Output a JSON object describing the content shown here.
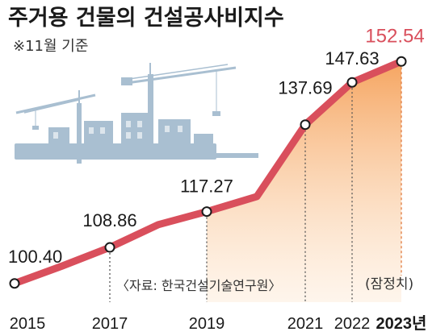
{
  "header": {
    "title": "주거용 건물의 건설공사비지수",
    "note": "※11월 기준"
  },
  "source": "〈자료: 한국건설기술연구원〉",
  "preliminary": "(잠정치)",
  "colors": {
    "line": "#d94f5c",
    "area_top": "#f5a058",
    "highlight": "#d94f5c",
    "illustration": "#a9bfd1"
  },
  "chart_data": {
    "type": "line",
    "title": "주거용 건물의 건설공사비지수",
    "xlabel": "",
    "ylabel": "",
    "points": [
      {
        "x": 2015,
        "y": 100.4,
        "label": "100.40",
        "marked": true
      },
      {
        "x": 2016,
        "y": 104.5,
        "label": "",
        "marked": false
      },
      {
        "x": 2017,
        "y": 108.86,
        "label": "108.86",
        "marked": true
      },
      {
        "x": 2018,
        "y": 114.2,
        "label": "",
        "marked": false
      },
      {
        "x": 2019,
        "y": 117.27,
        "label": "117.27",
        "marked": true
      },
      {
        "x": 2020,
        "y": 120.8,
        "label": "",
        "marked": false
      },
      {
        "x": 2021,
        "y": 137.69,
        "label": "137.69",
        "marked": true
      },
      {
        "x": 2022,
        "y": 147.63,
        "label": "147.63",
        "marked": true
      },
      {
        "x": 2023,
        "y": 152.54,
        "label": "152.54",
        "marked": true
      }
    ],
    "ticks": [
      {
        "x": 2015,
        "label": "2015"
      },
      {
        "x": 2017,
        "label": "2017"
      },
      {
        "x": 2019,
        "label": "2019"
      },
      {
        "x": 2021,
        "label": "2021"
      },
      {
        "x": 2022,
        "label": "2022"
      },
      {
        "x": 2023,
        "label": "2023년"
      }
    ],
    "highlight_x": 2023,
    "shaded_from_x": 2019,
    "ylim": [
      96,
      156
    ],
    "grid": false
  }
}
